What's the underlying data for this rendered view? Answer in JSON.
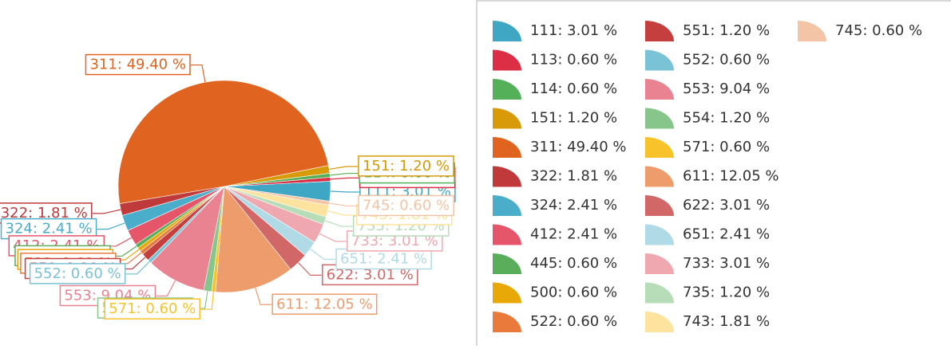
{
  "chart_data": {
    "type": "pie",
    "categories": [
      "111",
      "113",
      "114",
      "151",
      "311",
      "322",
      "324",
      "412",
      "445",
      "500",
      "522",
      "551",
      "552",
      "553",
      "554",
      "571",
      "611",
      "622",
      "651",
      "733",
      "735",
      "743",
      "745"
    ],
    "values": [
      3.01,
      0.6,
      0.6,
      1.2,
      49.4,
      1.81,
      2.41,
      2.41,
      0.6,
      0.6,
      0.6,
      1.2,
      0.6,
      9.04,
      1.2,
      0.6,
      12.05,
      3.01,
      2.41,
      3.01,
      1.2,
      1.81,
      0.6
    ],
    "value_labels": [
      "111: 3.01 %",
      "113: 0.60 %",
      "114: 0.60 %",
      "151: 1.20 %",
      "311: 49.40 %",
      "322: 1.81 %",
      "324: 2.41 %",
      "412: 2.41 %",
      "445: 0.60 %",
      "500: 0.60 %",
      "522: 0.60 %",
      "551: 1.20 %",
      "552: 0.60 %",
      "553: 9.04 %",
      "554: 1.20 %",
      "571: 0.60 %",
      "611: 12.05 %",
      "622: 3.01 %",
      "651: 2.41 %",
      "733: 3.01 %",
      "735: 1.20 %",
      "743: 1.81 %",
      "745: 0.60 %"
    ],
    "colors": [
      "#3fa7c4",
      "#dc2f45",
      "#55b05a",
      "#d99a0a",
      "#e0641f",
      "#c0393b",
      "#4aaecb",
      "#e5566b",
      "#5aad5b",
      "#e7a808",
      "#ea7a3c",
      "#c63f3f",
      "#7ac3d6",
      "#ea8391",
      "#86c68a",
      "#f8c22b",
      "#ee9c6c",
      "#d26767",
      "#b0dbe6",
      "#f0a8b0",
      "#b7dcb8",
      "#fde39e",
      "#f4c4a6"
    ],
    "legend": "right"
  }
}
